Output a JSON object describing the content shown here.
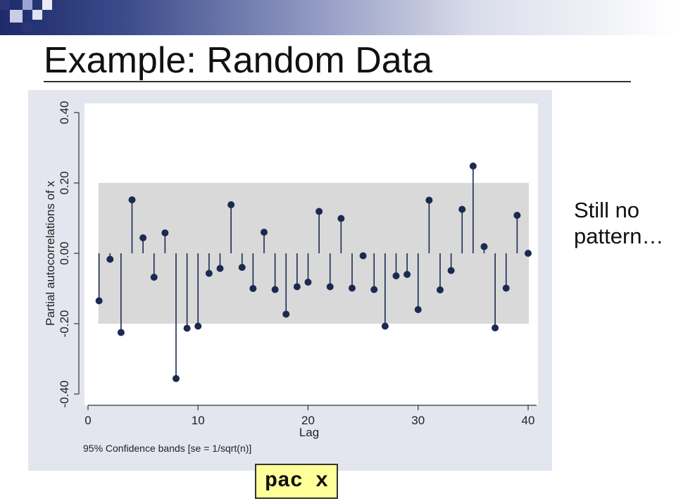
{
  "slide": {
    "title": "Example: Random Data",
    "side_note_lines": [
      "Still no",
      "pattern…"
    ],
    "command": "pac x"
  },
  "colors": {
    "stem": "#1a2a52",
    "band": "#d9d9d9",
    "frame": "#e3e6ef",
    "header_dark": "#1e2a6a"
  },
  "chart_data": {
    "type": "stem",
    "xlabel": "Lag",
    "ylabel": "Partial autocorrelations of x",
    "note": "95% Confidence bands [se = 1/sqrt(n)]",
    "xlim": [
      0,
      40
    ],
    "ylim": [
      -0.4,
      0.4
    ],
    "x_ticks": [
      "0",
      "10",
      "20",
      "30",
      "40"
    ],
    "y_ticks": [
      "-0.40",
      "-0.20",
      "0.00",
      "0.20",
      "0.40"
    ],
    "confidence_band": [
      -0.2,
      0.2
    ],
    "lags": [
      1,
      2,
      3,
      4,
      5,
      6,
      7,
      8,
      9,
      10,
      11,
      12,
      13,
      14,
      15,
      16,
      17,
      18,
      19,
      20,
      21,
      22,
      23,
      24,
      25,
      26,
      27,
      28,
      29,
      30,
      31,
      32,
      33,
      34,
      35,
      36,
      37,
      38,
      39,
      40
    ],
    "values": [
      -0.135,
      -0.017,
      -0.225,
      0.152,
      0.044,
      -0.068,
      0.058,
      -0.356,
      -0.213,
      -0.207,
      -0.057,
      -0.043,
      0.138,
      -0.04,
      -0.1,
      0.06,
      -0.103,
      -0.173,
      -0.095,
      -0.082,
      0.119,
      -0.095,
      0.099,
      -0.099,
      -0.007,
      -0.103,
      -0.207,
      -0.064,
      -0.06,
      -0.16,
      0.151,
      -0.104,
      -0.049,
      0.125,
      0.248,
      0.019,
      -0.212,
      -0.099,
      0.108,
      0.0
    ]
  }
}
